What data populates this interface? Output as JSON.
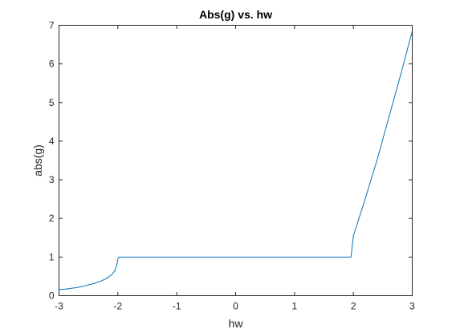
{
  "chart_data": {
    "type": "line",
    "title": "Abs(g) vs. hw",
    "xlabel": "hw",
    "ylabel": "abs(g)",
    "xlim": [
      -3,
      3
    ],
    "ylim": [
      0,
      7
    ],
    "xticks": [
      -3,
      -2,
      -1,
      0,
      1,
      2,
      3
    ],
    "yticks": [
      0,
      1,
      2,
      3,
      4,
      5,
      6,
      7
    ],
    "xtick_labels": [
      "-3",
      "-2",
      "-1",
      "0",
      "1",
      "2",
      "3"
    ],
    "ytick_labels": [
      "0",
      "1",
      "2",
      "3",
      "4",
      "5",
      "6",
      "7"
    ],
    "grid": false,
    "box": true,
    "series": [
      {
        "color": "#0072BD",
        "x": [
          -3.0,
          -2.9,
          -2.8,
          -2.7,
          -2.6,
          -2.5,
          -2.4,
          -2.3,
          -2.2,
          -2.1,
          -2.05,
          -2.02,
          -2.0,
          -1.98,
          -1.0,
          0.0,
          1.0,
          1.96,
          2.0,
          2.2,
          2.4,
          2.6,
          2.8,
          3.0
        ],
        "y": [
          0.16,
          0.17,
          0.19,
          0.21,
          0.24,
          0.28,
          0.32,
          0.37,
          0.44,
          0.55,
          0.65,
          0.78,
          0.95,
          1.0,
          1.0,
          1.0,
          1.0,
          1.0,
          1.55,
          2.5,
          3.5,
          4.6,
          5.7,
          6.85
        ]
      }
    ]
  }
}
